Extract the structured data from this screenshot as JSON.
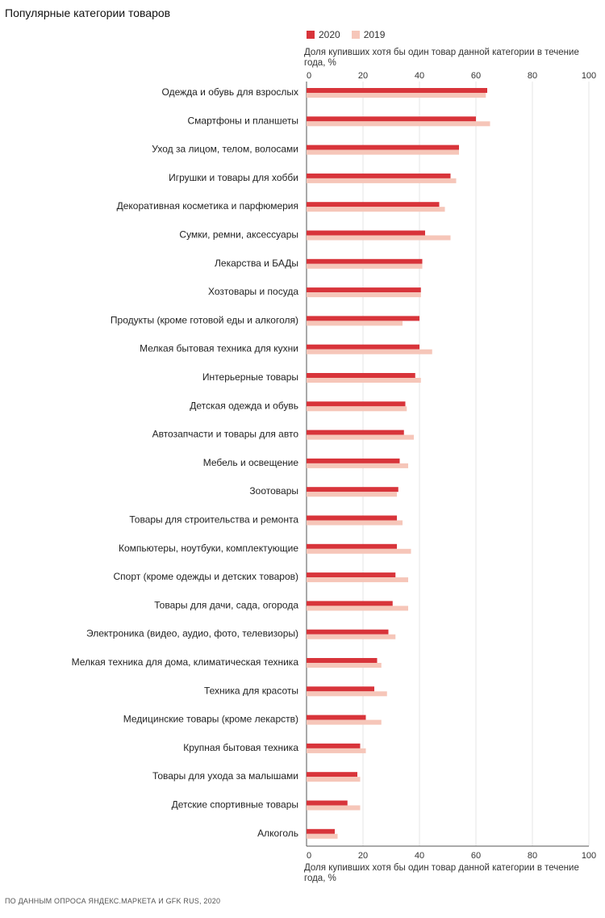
{
  "page_title": "Популярные категории товаров",
  "source": "ПО ДАННЫМ ОПРОСА ЯНДЕКС.МАРКЕТА И GFK RUS, 2020",
  "colors": {
    "series_2020": "#d8343a",
    "series_2019": "#f6c6b9",
    "grid": "#e6e6e6",
    "axis": "#555555"
  },
  "chart_data": {
    "type": "bar",
    "orientation": "horizontal",
    "xlabel": "Доля купивших хотя бы один товар данной категории в течение года, %",
    "xlim": [
      0,
      100
    ],
    "xticks": [
      0,
      20,
      40,
      60,
      80,
      100
    ],
    "grid": true,
    "legend_position": "top",
    "categories": [
      "Одежда и обувь для взрослых",
      "Смартфоны и планшеты",
      "Уход за лицом, телом, волосами",
      "Игрушки и товары для хобби",
      "Декоративная косметика и парфюмерия",
      "Сумки, ремни, аксессуары",
      "Лекарства и БАДы",
      "Хозтовары и посуда",
      "Продукты (кроме готовой еды и алкоголя)",
      "Мелкая бытовая техника для кухни",
      "Интерьерные товары",
      "Детская одежда и обувь",
      "Автозапчасти и товары для авто",
      "Мебель и освещение",
      "Зоотовары",
      "Товары для строительства и ремонта",
      "Компьютеры, ноутбуки, комплектующие",
      "Спорт (кроме одежды и детских товаров)",
      "Товары для дачи, сада, огорода",
      "Электроника (видео, аудио, фото, телевизоры)",
      "Мелкая техника для дома, климатическая техника",
      "Техника для красоты",
      "Медицинские товары (кроме лекарств)",
      "Крупная бытовая техника",
      "Товары для ухода за малышами",
      "Детские спортивные товары",
      "Алкоголь"
    ],
    "series": [
      {
        "name": "2020",
        "values": [
          64,
          60,
          54,
          51,
          47,
          42,
          41,
          40.5,
          40,
          40,
          38.5,
          35,
          34.5,
          33,
          32.5,
          32,
          32,
          31.5,
          30.5,
          29,
          25,
          24,
          21,
          19,
          18,
          14.5,
          10
        ]
      },
      {
        "name": "2019",
        "values": [
          63.5,
          65,
          54,
          53,
          49,
          51,
          41,
          40.5,
          34,
          44.5,
          40.5,
          35.5,
          38,
          36,
          32,
          34,
          37,
          36,
          36,
          31.5,
          26.5,
          28.5,
          26.5,
          21,
          19,
          19,
          11
        ]
      }
    ]
  }
}
